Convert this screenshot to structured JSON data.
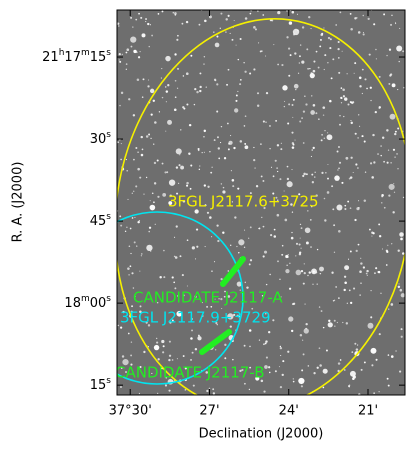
{
  "chart_data": {
    "type": "image",
    "xlabel": "Declination (J2000)",
    "ylabel": "R. A. (J2000)",
    "xlim": [
      2250.5,
      2239.6
    ],
    "xticks": [
      {
        "value": 2250,
        "label": "37°30'"
      },
      {
        "value": 2247,
        "label": "27'"
      },
      {
        "value": 2244,
        "label": "24'"
      },
      {
        "value": 2241,
        "label": "21'"
      }
    ],
    "ylim": [
      1026.4,
      1096.8
    ],
    "yticks": [
      {
        "value": 1035,
        "label": "21h17m15s"
      },
      {
        "value": 1050,
        "label": "30s"
      },
      {
        "value": 1065,
        "label": "45s"
      },
      {
        "value": 1080,
        "label": "18m00s"
      },
      {
        "value": 1095,
        "label": "15s"
      }
    ],
    "annotations": [
      "3FGL J2117.6+3725",
      "CANDIDATE J2117-A",
      "3FGL J2117.9+3729",
      "CANDIDATE J2117-B"
    ]
  }
}
